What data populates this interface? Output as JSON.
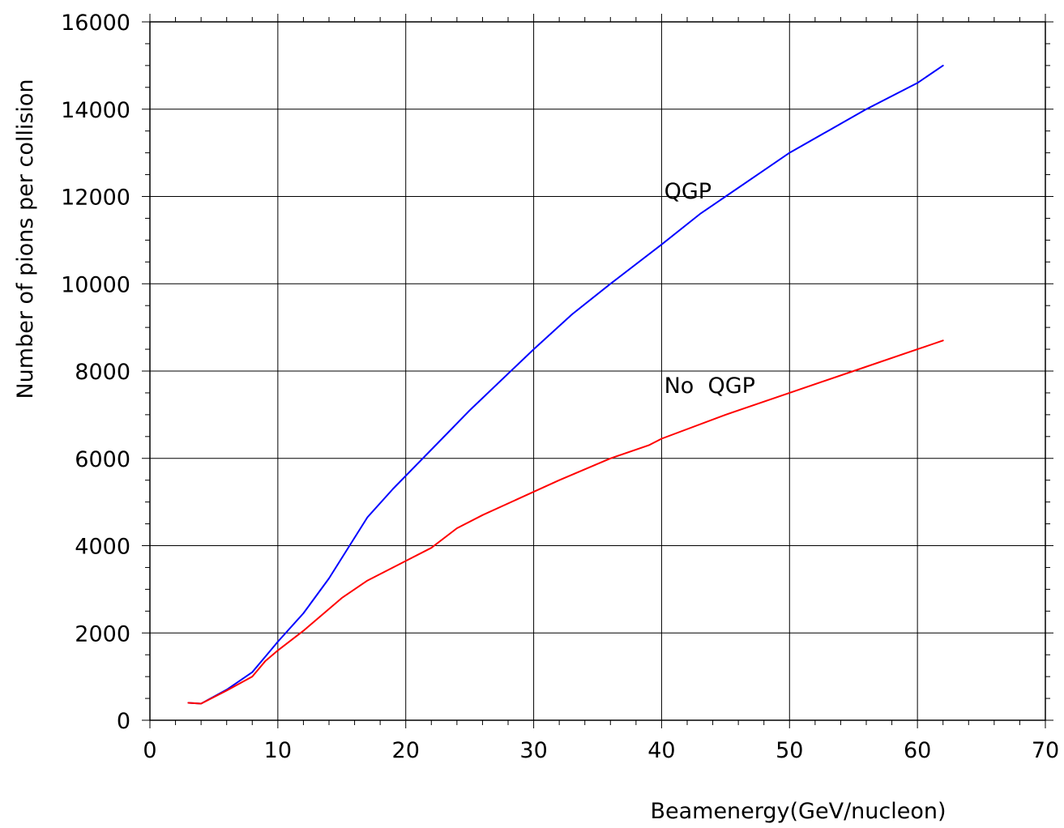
{
  "chart_data": {
    "type": "line",
    "title": "",
    "xlabel": "Beamenergy(GeV/nucleon)",
    "ylabel": "Number of pions per collision",
    "xlim": [
      0,
      70
    ],
    "ylim": [
      0,
      16000
    ],
    "x_ticks": [
      0,
      10,
      20,
      30,
      40,
      50,
      60,
      70
    ],
    "y_ticks": [
      0,
      2000,
      4000,
      6000,
      8000,
      10000,
      12000,
      14000,
      16000
    ],
    "x_tick_labels": [
      "0",
      "10",
      "20",
      "30",
      "40",
      "50",
      "60",
      "70"
    ],
    "y_tick_labels": [
      "0",
      "2000",
      "4000",
      "6000",
      "8000",
      "10000",
      "12000",
      "14000",
      "16000"
    ],
    "grid": true,
    "series": [
      {
        "name": "QGP",
        "color": "#0000ff",
        "x": [
          3,
          4,
          6,
          8,
          9,
          10,
          12,
          14,
          17,
          19,
          22,
          25,
          30,
          33,
          36,
          40,
          43,
          45,
          48,
          50,
          53,
          56,
          60,
          62
        ],
        "y": [
          400,
          380,
          700,
          1100,
          1450,
          1800,
          2450,
          3250,
          4650,
          5300,
          6200,
          7100,
          8500,
          9300,
          10000,
          10900,
          11600,
          12000,
          12600,
          13000,
          13500,
          14000,
          14600,
          15000
        ]
      },
      {
        "name": "No QGP",
        "color": "#ff0000",
        "x": [
          3,
          4,
          6,
          8,
          9,
          10,
          12,
          15,
          17,
          20,
          22,
          24,
          26,
          29,
          32,
          36,
          39,
          40,
          45,
          50,
          55,
          60,
          62
        ],
        "y": [
          400,
          380,
          680,
          1000,
          1350,
          1600,
          2050,
          2800,
          3200,
          3650,
          3950,
          4400,
          4700,
          5100,
          5500,
          6000,
          6300,
          6450,
          7000,
          7500,
          8000,
          8500,
          8700
        ]
      }
    ],
    "annotations": [
      {
        "text": "QGP",
        "x": 40.2,
        "y": 11950
      },
      {
        "text": "No  QGP",
        "x": 40.2,
        "y": 7500
      }
    ]
  }
}
